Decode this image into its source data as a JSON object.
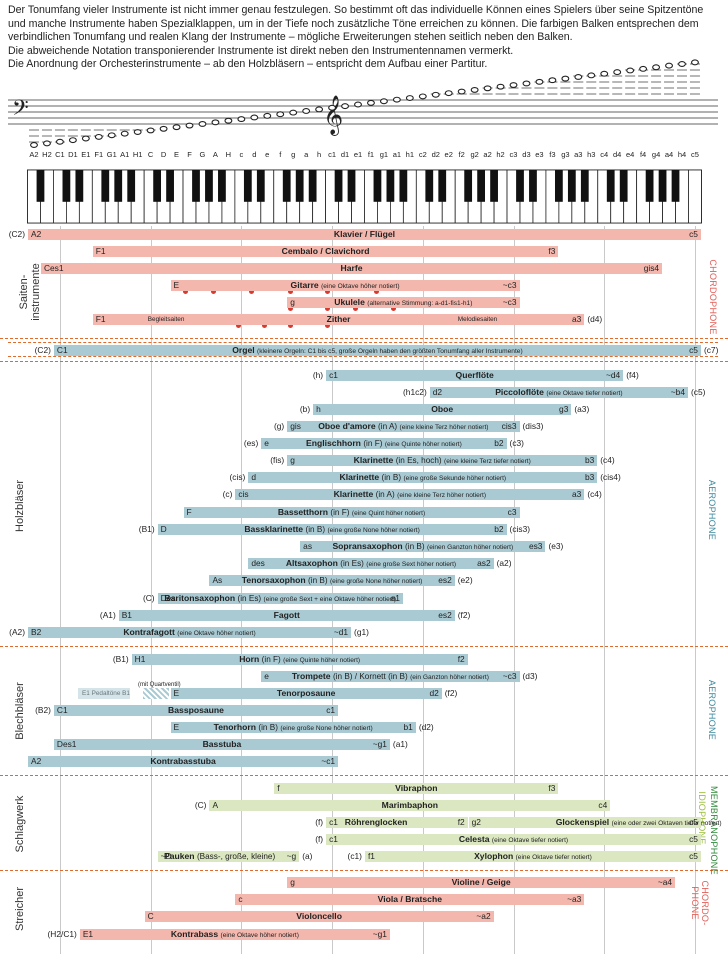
{
  "intro": [
    "Der Tonumfang vieler Instrumente ist nicht immer genau festzulegen. So bestimmt oft das individuelle Können eines Spielers über seine Spitzentöne",
    "und manche Instrumente haben Spezialklappen, um in der Tiefe noch zusätzliche Töne erreichen zu können. Die farbigen Balken entsprechen dem",
    "verbindlichen Tonumfang und realen Klang der Instrumente – mögliche Erweiterungen stehen seitlich neben den Balken.",
    "Die abweichende Notation transponierender Instrumente ist direkt neben den Instrumentennamen vermerkt.",
    "Die Anordnung der Orchesterinstrumente  – ab den Holzbläsern – entspricht dem Aufbau einer Partitur."
  ],
  "notes": [
    "A2",
    "H2",
    "C1",
    "D1",
    "E1",
    "F1",
    "G1",
    "A1",
    "H1",
    "C",
    "D",
    "E",
    "F",
    "G",
    "A",
    "H",
    "c",
    "d",
    "e",
    "f",
    "g",
    "a",
    "h",
    "c1",
    "d1",
    "e1",
    "f1",
    "g1",
    "a1",
    "h1",
    "c2",
    "d2",
    "e2",
    "f2",
    "g2",
    "a2",
    "h2",
    "c3",
    "d3",
    "e3",
    "f3",
    "g3",
    "a3",
    "h3",
    "c4",
    "d4",
    "e4",
    "f4",
    "g4",
    "a4",
    "h4",
    "c5"
  ],
  "colors": {
    "salmon": "#f4b7ad",
    "blue": "#a9cad3",
    "green": "#dbe7c0",
    "accent": "#e06a2c",
    "chordophone": "#e0605a",
    "aerophone": "#3d8aa0",
    "idiophone": "#9bbf3c",
    "membranophone": "#2f8a3a"
  },
  "sections": {
    "saiten": "Saiten-instrumente",
    "holz": "Holzbläser",
    "blech": "Blechbläser",
    "schlag": "Schlagwerk",
    "streicher": "Streicher"
  },
  "families": {
    "chordophone": "CHORDOPHONE",
    "aerophone1": "AEROPHONE",
    "aerophone2": "AEROPHONE",
    "idiophone": "IDIOPHONE",
    "membranophone": "MEMBRANOPHONE",
    "chordo2": "CHORDO-",
    "phone2": "PHONE"
  },
  "rows": [
    {
      "pre": "(C2)",
      "low": "A2",
      "name": "Klavier / Flügel",
      "high": "c5",
      "color": "salmon",
      "s": 0,
      "e": 51
    },
    {
      "low": "F1",
      "name": "Cembalo / Clavichord",
      "high": "f3",
      "color": "salmon",
      "s": 5,
      "e": 40
    },
    {
      "low": "Ces1",
      "name": "Harfe",
      "high": "gis4",
      "color": "salmon",
      "s": 1,
      "e": 48
    },
    {
      "low": "E",
      "name": "Gitarre",
      "sub": "(eine Oktave höher notiert)",
      "high": "~c3",
      "color": "salmon",
      "s": 11,
      "e": 37
    },
    {
      "low": "g",
      "name": "Ukulele",
      "sub": "(alternative Stimmung: a-d1-fis1-h1)",
      "high": "~c3",
      "color": "salmon",
      "s": 20,
      "e": 37
    },
    {
      "low": "F1",
      "extra": "Begleitsaiten",
      "name": "Zither",
      "extra2": "Melodiesaiten",
      "high": "a3",
      "post": "(d4)",
      "color": "salmon",
      "s": 5,
      "e": 42
    },
    {
      "pre": "(C2)",
      "low": "C1",
      "name": "Orgel",
      "sub": "(kleinere Orgeln: C1 bis c5, große Orgeln haben den größten Tonumfang aller Instrumente)",
      "high": "c5",
      "post": "(c7)",
      "color": "blue",
      "s": 2,
      "e": 51
    },
    {
      "pre": "(h)",
      "low": "c1",
      "name": "Querflöte",
      "high": "~d4",
      "post": "(f4)",
      "color": "blue",
      "s": 23,
      "e": 45
    },
    {
      "pre": "(h1c2)",
      "low": "d2",
      "name": "Piccoloflöte",
      "sub": "(eine Oktave tiefer notiert)",
      "high": "~b4",
      "post": "(c5)",
      "color": "blue",
      "s": 31,
      "e": 50
    },
    {
      "pre": "(b)",
      "low": "h",
      "name": "Oboe",
      "high": "g3",
      "post": "(a3)",
      "color": "blue",
      "s": 22,
      "e": 41
    },
    {
      "pre": "(g)",
      "low": "gis",
      "name": "Oboe d'amore",
      "mid": "(in A)",
      "sub": "(eine kleine Terz höher notiert)",
      "high": "cis3",
      "post": "(dis3)",
      "color": "blue",
      "s": 20,
      "e": 37
    },
    {
      "pre": "(es)",
      "low": "e",
      "name": "Englischhorn",
      "mid": "(in F)",
      "sub": "(eine Quinte höher notiert)",
      "high": "b2",
      "post": "(c3)",
      "color": "blue",
      "s": 18,
      "e": 36
    },
    {
      "pre": "(fis)",
      "low": "g",
      "name": "Klarinette",
      "mid": "(in Es, hoch)",
      "sub": "(eine kleine Terz tiefer notiert)",
      "high": "b3",
      "post": "(c4)",
      "color": "blue",
      "s": 20,
      "e": 43
    },
    {
      "pre": "(cis)",
      "low": "d",
      "name": "Klarinette",
      "mid": "(in B)",
      "sub": "(eine große Sekunde höher notiert)",
      "high": "b3",
      "post": "(cis4)",
      "color": "blue",
      "s": 17,
      "e": 43
    },
    {
      "pre": "(c)",
      "low": "cis",
      "name": "Klarinette",
      "mid": "(in A)",
      "sub": "(eine kleine Terz höher notiert)",
      "high": "a3",
      "post": "(c4)",
      "color": "blue",
      "s": 16,
      "e": 42
    },
    {
      "low": "F",
      "name": "Bassetthorn",
      "mid": "(in F)",
      "sub": "(eine Quint höher notiert)",
      "high": "c3",
      "color": "blue",
      "s": 12,
      "e": 37
    },
    {
      "pre": "(B1)",
      "low": "D",
      "name": "Bassklarinette",
      "mid": "(in B)",
      "sub": "(eine große None höher notiert)",
      "high": "b2",
      "post": "(cis3)",
      "color": "blue",
      "s": 10,
      "e": 36
    },
    {
      "low": "as",
      "name": "Sopransaxophon",
      "mid": "(in B)",
      "sub": "(einen Ganzton höher notiert)",
      "high": "es3",
      "post": "(e3)",
      "color": "blue",
      "s": 21,
      "e": 39
    },
    {
      "low": "des",
      "name": "Altsaxophon",
      "mid": "(in Es)",
      "sub": "(eine große Sext höher notiert)",
      "high": "as2",
      "post": "(a2)",
      "color": "blue",
      "s": 17,
      "e": 35
    },
    {
      "low": "As",
      "name": "Tenorsaxophon",
      "mid": "(in B)",
      "sub": "(eine große None höher notiert)",
      "high": "es2",
      "post": "(e2)",
      "color": "blue",
      "s": 14,
      "e": 32
    },
    {
      "pre": "(C)",
      "low": "Des",
      "name": "Baritonsaxophon",
      "mid": "(in Es)",
      "sub": "(eine große Sext + eine Oktave höher notiert)",
      "high": "a1",
      "color": "blue",
      "s": 10,
      "e": 28
    },
    {
      "pre": "(A1)",
      "low": "B1",
      "name": "Fagott",
      "high": "es2",
      "post": "(f2)",
      "color": "blue",
      "s": 7,
      "e": 32
    },
    {
      "pre": "(A2)",
      "low": "B2",
      "name": "Kontrafagott",
      "sub": "(eine Oktave höher notiert)",
      "high": "~d1",
      "post": "(g1)",
      "color": "blue",
      "s": 0,
      "e": 24
    },
    {
      "pre": "(B1)",
      "low": "H1",
      "name": "Horn",
      "mid": "(in F)",
      "sub": "(eine Quinte höher notiert)",
      "high": "f2",
      "color": "blue",
      "s": 8,
      "e": 33
    },
    {
      "low": "e",
      "name": "Trompete",
      "mid": "(in B) / Kornett",
      "mid2": "(in B)",
      "sub": "(ein Ganzton höher notiert)",
      "high": "~c3",
      "post": "(d3)",
      "color": "blue",
      "s": 18,
      "e": 37
    },
    {
      "extra": "E1  Pedaltöne  B1",
      "hatchnote": "(mit Quartventil)",
      "low": "E",
      "name": "Tenorposaune",
      "high": "d2",
      "post": "(f2)",
      "color": "blue",
      "s": 11,
      "e": 31
    },
    {
      "pre": "(B2)",
      "low": "C1",
      "name": "Bassposaune",
      "high": "c1",
      "color": "blue",
      "s": 2,
      "e": 23
    },
    {
      "low": "E",
      "name": "Tenorhorn",
      "mid": "(in B)",
      "sub": "(eine große None höher notiert)",
      "high": "b1",
      "post": "(d2)",
      "color": "blue",
      "s": 11,
      "e": 29
    },
    {
      "low": "Des1",
      "name": "Basstuba",
      "high": "~g1",
      "post": "(a1)",
      "color": "blue",
      "s": 2,
      "e": 27
    },
    {
      "low": "A2",
      "name": "Kontrabasstuba",
      "high": "~c1",
      "color": "blue",
      "s": 0,
      "e": 23
    },
    {
      "low": "f",
      "name": "Vibraphon",
      "high": "f3",
      "color": "green",
      "s": 19,
      "e": 40
    },
    {
      "pre": "(C)",
      "low": "A",
      "name": "Marimbaphon",
      "high": "c4",
      "color": "green",
      "s": 14,
      "e": 44
    },
    {
      "pre": "(f)",
      "low": "c1",
      "name": "Röhrenglocken",
      "high": "f2",
      "color": "green",
      "s": 23,
      "e": 33
    },
    {
      "low": "g2",
      "name": "Glockenspiel",
      "sub": "(eine oder zwei Oktaven tiefer notiert)",
      "high": "c5",
      "color": "green",
      "s": 34,
      "e": 51
    },
    {
      "pre": "(f)",
      "low": "c1",
      "name": "Celesta",
      "sub": "(eine Oktave tiefer notiert)",
      "high": "c5",
      "color": "green",
      "s": 23,
      "e": 51
    },
    {
      "low": "~D",
      "name": "Pauken",
      "mid": "(Bass-, große, kleine)",
      "high": "~g",
      "post": "(a)",
      "color": "green",
      "s": 10,
      "e": 20
    },
    {
      "pre": "(c1)",
      "low": "f1",
      "name": "Xylophon",
      "sub": "(eine Oktave tiefer notiert)",
      "high": "c5",
      "color": "green",
      "s": 26,
      "e": 51
    },
    {
      "low": "g",
      "name": "Violine / Geige",
      "high": "~a4",
      "color": "salmon",
      "s": 20,
      "e": 49
    },
    {
      "low": "c",
      "name": "Viola / Bratsche",
      "high": "~a3",
      "color": "salmon",
      "s": 16,
      "e": 42
    },
    {
      "low": "C",
      "name": "Violoncello",
      "high": "~a2",
      "color": "salmon",
      "s": 9,
      "e": 35
    },
    {
      "pre": "(H2/C1)",
      "low": "E1",
      "name": "Kontrabass",
      "sub": "(eine Oktave höher notiert)",
      "high": "~g1",
      "color": "salmon",
      "s": 4,
      "e": 27
    }
  ]
}
